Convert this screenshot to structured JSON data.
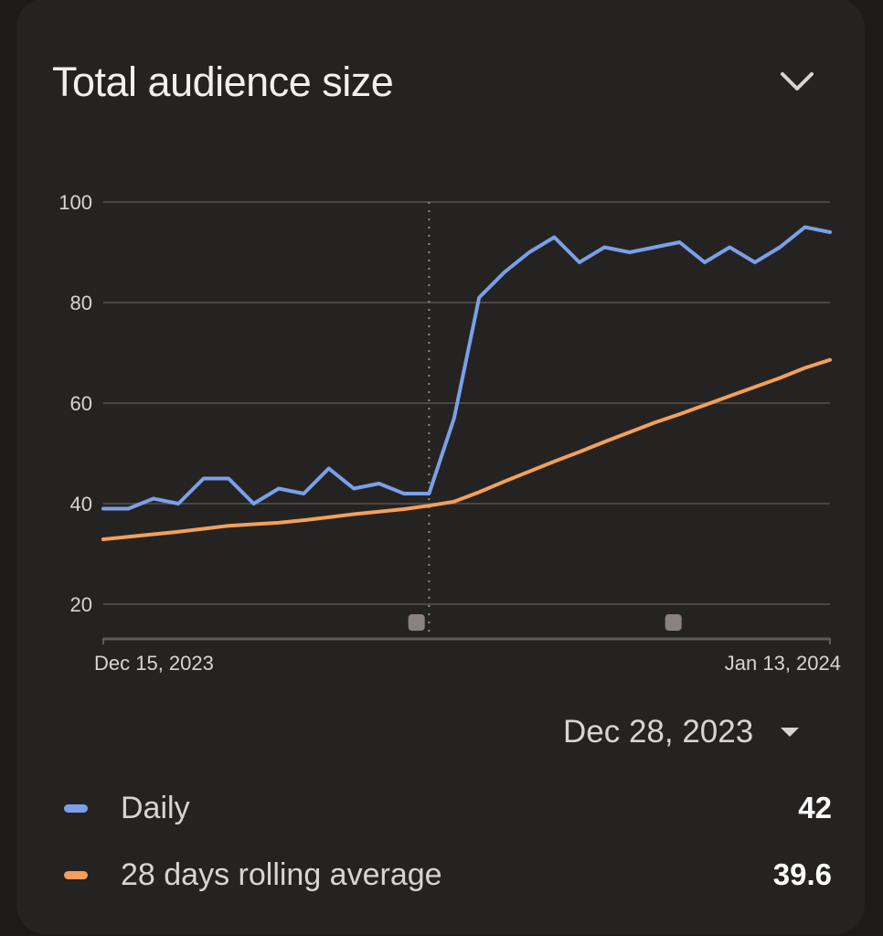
{
  "card": {
    "title": "Total audience size",
    "collapse_icon": "chevron-down-icon"
  },
  "selected_date": {
    "label": "Dec 28, 2023",
    "dropdown_icon": "caret-down-icon"
  },
  "legend": [
    {
      "name": "Daily",
      "value": "42",
      "color": "#7aa0ea"
    },
    {
      "name": "28 days rolling average",
      "value": "39.6",
      "color": "#f2a05c"
    }
  ],
  "chart_data": {
    "type": "line",
    "title": "Total audience size",
    "xlabel": "",
    "ylabel": "",
    "x_start_label": "Dec 15, 2023",
    "x_end_label": "Jan 13, 2024",
    "x": [
      "Dec 15",
      "Dec 16",
      "Dec 17",
      "Dec 18",
      "Dec 19",
      "Dec 20",
      "Dec 21",
      "Dec 22",
      "Dec 23",
      "Dec 24",
      "Dec 25",
      "Dec 26",
      "Dec 27",
      "Dec 28",
      "Dec 29",
      "Dec 30",
      "Dec 31",
      "Jan 1",
      "Jan 2",
      "Jan 3",
      "Jan 4",
      "Jan 5",
      "Jan 6",
      "Jan 7",
      "Jan 8",
      "Jan 9",
      "Jan 10",
      "Jan 11",
      "Jan 12",
      "Jan 13"
    ],
    "yticks": [
      20,
      40,
      60,
      80,
      100
    ],
    "ylim": [
      13,
      100
    ],
    "grid": true,
    "selected_index": 13,
    "annotation_marker_indices": [
      12.5,
      22.75
    ],
    "series": [
      {
        "name": "Daily",
        "color": "#7aa0ea",
        "values": [
          39,
          39,
          41,
          40,
          45,
          45,
          40,
          43,
          42,
          47,
          43,
          44,
          42,
          42,
          57,
          81,
          86,
          90,
          93,
          88,
          91,
          90,
          91,
          92,
          88,
          91,
          88,
          91,
          95,
          94
        ]
      },
      {
        "name": "28 days rolling average",
        "color": "#f2a05c",
        "values": [
          32.9,
          33.4,
          33.9,
          34.4,
          35.0,
          35.6,
          35.9,
          36.2,
          36.7,
          37.3,
          37.9,
          38.4,
          38.9,
          39.6,
          40.4,
          42.3,
          44.4,
          46.4,
          48.4,
          50.3,
          52.3,
          54.2,
          56.1,
          57.8,
          59.6,
          61.4,
          63.2,
          65.0,
          67.0,
          68.6
        ]
      }
    ]
  }
}
